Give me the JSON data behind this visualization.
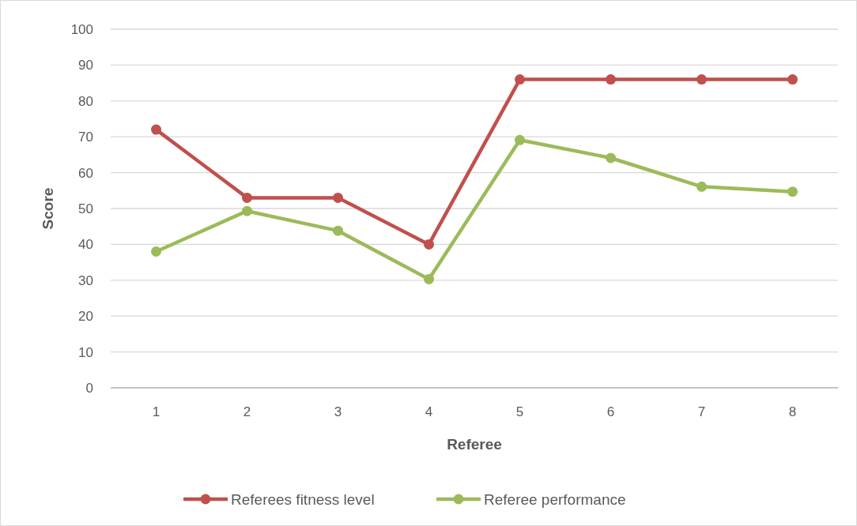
{
  "chart_data": {
    "type": "line",
    "xlabel": "Referee",
    "ylabel": "Score",
    "categories": [
      "1",
      "2",
      "3",
      "4",
      "5",
      "6",
      "7",
      "8"
    ],
    "series": [
      {
        "name": "Referees fitness level",
        "color": "#c0504d",
        "values": [
          72,
          53,
          53,
          40,
          86,
          86,
          86,
          86
        ]
      },
      {
        "name": "Referee performance",
        "color": "#9bbb59",
        "values": [
          38,
          49.3,
          43.8,
          30.3,
          69.1,
          64.1,
          56.1,
          54.7
        ]
      }
    ],
    "ylim": [
      0,
      100
    ],
    "yticks": [
      0,
      10,
      20,
      30,
      40,
      50,
      60,
      70,
      80,
      90,
      100
    ],
    "grid": "y",
    "legend": "bottom",
    "marker": "circle",
    "line_style": "solid"
  }
}
